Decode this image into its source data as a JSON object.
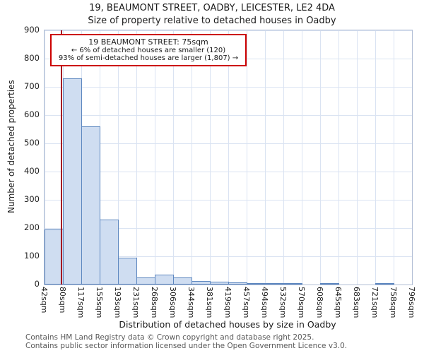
{
  "title": "19, BEAUMONT STREET, OADBY, LEICESTER, LE2 4DA",
  "subtitle": "Size of property relative to detached houses in Oadby",
  "chart_data": {
    "type": "bar",
    "title": "19, BEAUMONT STREET, OADBY, LEICESTER, LE2 4DA",
    "subtitle": "Size of property relative to detached houses in Oadby",
    "xlabel": "Distribution of detached houses by size in Oadby",
    "ylabel": "Number of detached properties",
    "ylim": [
      0,
      900
    ],
    "yticks": [
      0,
      100,
      200,
      300,
      400,
      500,
      600,
      700,
      800,
      900
    ],
    "grid": true,
    "categories": [
      "42sqm",
      "80sqm",
      "117sqm",
      "155sqm",
      "193sqm",
      "231sqm",
      "268sqm",
      "306sqm",
      "344sqm",
      "381sqm",
      "419sqm",
      "457sqm",
      "494sqm",
      "532sqm",
      "570sqm",
      "608sqm",
      "645sqm",
      "683sqm",
      "721sqm",
      "758sqm",
      "796sqm"
    ],
    "values": [
      195,
      730,
      560,
      230,
      95,
      25,
      36,
      25,
      12,
      10,
      8,
      5,
      6,
      3,
      0,
      3,
      0,
      0,
      3,
      0
    ],
    "bar_fill": "#cfddf1",
    "bar_border": "#5d87c0",
    "marker": {
      "label": "19 BEAUMONT STREET: 75sqm",
      "value_sqm": 75,
      "bin_start": 42,
      "bin_width": 38,
      "color": "#a41023"
    }
  },
  "annotation": {
    "line1": "19 BEAUMONT STREET: 75sqm",
    "line2": "← 6% of detached houses are smaller (120)",
    "line3": "93% of semi-detached houses are larger (1,807) →"
  },
  "footer": {
    "line1": "Contains HM Land Registry data © Crown copyright and database right 2025.",
    "line2": "Contains public sector information licensed under the Open Government Licence v3.0."
  }
}
